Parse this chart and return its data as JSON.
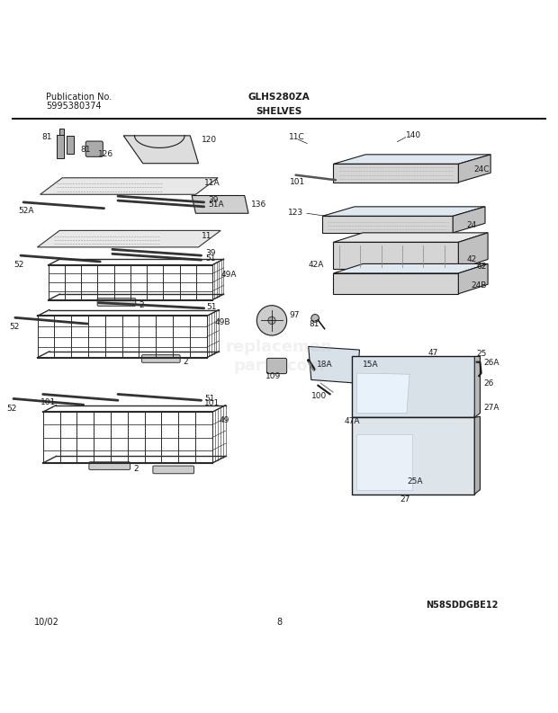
{
  "title": "GLHS280ZA",
  "subtitle": "SHELVES",
  "pub_no_label": "Publication No.",
  "pub_no": "5995380374",
  "date": "10/02",
  "page": "8",
  "diagram_code": "N58SDDGBE12",
  "bg_color": "#ffffff",
  "line_color": "#1a1a1a",
  "text_color": "#1a1a1a"
}
